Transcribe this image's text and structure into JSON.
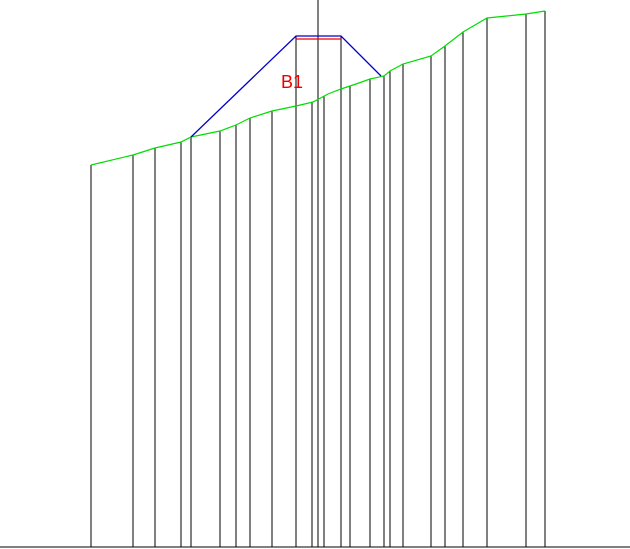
{
  "drawing": {
    "label": "B1",
    "colors": {
      "ground_profile": "#00dd00",
      "section_lines": "#000000",
      "embankment_outline": "#0000cc",
      "crest_line": "#ee0000",
      "label": "#ee0000",
      "background": "#ffffff"
    }
  }
}
